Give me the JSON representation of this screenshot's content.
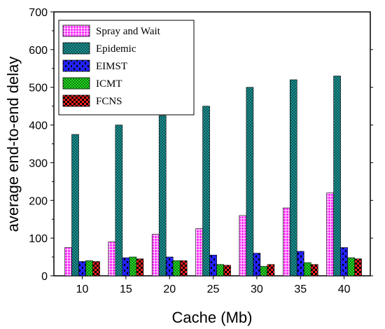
{
  "chart_data": {
    "type": "bar",
    "xlabel": "Cache (Mb)",
    "ylabel": "average end-to-end delay",
    "categories": [
      "10",
      "15",
      "20",
      "25",
      "30",
      "35",
      "40"
    ],
    "ylim": [
      0,
      700
    ],
    "yticks": [
      0,
      100,
      200,
      300,
      400,
      500,
      600,
      700
    ],
    "legend_position": "top-left",
    "grid": false,
    "series": [
      {
        "name": "Spray and Wait",
        "color": "#ff33ff",
        "pattern": "grid",
        "values": [
          75,
          90,
          110,
          125,
          160,
          180,
          220
        ]
      },
      {
        "name": "Epidemic",
        "color": "#1fa0a0",
        "pattern": "crosshatch",
        "values": [
          375,
          400,
          425,
          450,
          500,
          520,
          530
        ]
      },
      {
        "name": "EIMST",
        "color": "#2222ff",
        "pattern": "dashes",
        "values": [
          38,
          48,
          50,
          55,
          60,
          65,
          75
        ]
      },
      {
        "name": "ICMT",
        "color": "#22dd22",
        "pattern": "dots",
        "values": [
          40,
          50,
          40,
          30,
          25,
          35,
          48
        ]
      },
      {
        "name": "FCNS",
        "color": "#ff2222",
        "pattern": "checker",
        "values": [
          38,
          45,
          40,
          28,
          30,
          30,
          45
        ]
      }
    ]
  }
}
